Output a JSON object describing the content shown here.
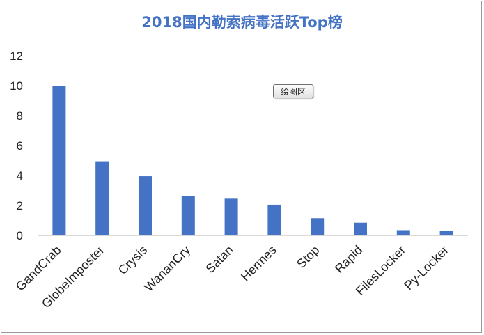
{
  "chart_data": {
    "type": "bar",
    "title": "2018国内勒索病毒活跃Top榜",
    "categories": [
      "GandCrab",
      "GlobeImposter",
      "Crysis",
      "WananCry",
      "Satan",
      "Hermes",
      "Stop",
      "Rapid",
      "FilesLocker",
      "Py-Locker"
    ],
    "values": [
      10,
      4.95,
      3.95,
      2.65,
      2.45,
      2.05,
      1.15,
      0.85,
      0.35,
      0.3
    ],
    "ylim": [
      0,
      12
    ],
    "yticks": [
      0,
      2,
      4,
      6,
      8,
      10,
      12
    ],
    "grid": false,
    "bar_color": "#4472c4",
    "title_color": "#4472c4"
  },
  "tooltip": "绘图区"
}
